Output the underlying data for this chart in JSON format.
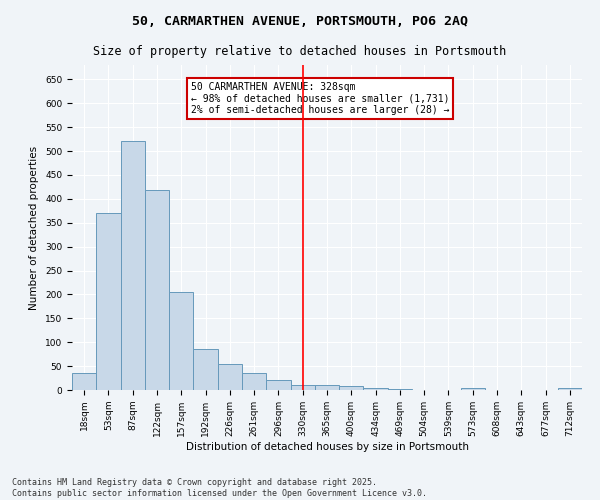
{
  "title": "50, CARMARTHEN AVENUE, PORTSMOUTH, PO6 2AQ",
  "subtitle": "Size of property relative to detached houses in Portsmouth",
  "xlabel": "Distribution of detached houses by size in Portsmouth",
  "ylabel": "Number of detached properties",
  "bar_color": "#c8d8e8",
  "bar_edge_color": "#6699bb",
  "background_color": "#f0f4f8",
  "grid_color": "#ffffff",
  "annotation_text": "50 CARMARTHEN AVENUE: 328sqm\n← 98% of detached houses are smaller (1,731)\n2% of semi-detached houses are larger (28) →",
  "annotation_box_color": "#cc0000",
  "categories": [
    "18sqm",
    "53sqm",
    "87sqm",
    "122sqm",
    "157sqm",
    "192sqm",
    "226sqm",
    "261sqm",
    "296sqm",
    "330sqm",
    "365sqm",
    "400sqm",
    "434sqm",
    "469sqm",
    "504sqm",
    "539sqm",
    "573sqm",
    "608sqm",
    "643sqm",
    "677sqm",
    "712sqm"
  ],
  "values": [
    35,
    370,
    522,
    418,
    205,
    85,
    55,
    35,
    20,
    10,
    10,
    8,
    5,
    2,
    1,
    0,
    4,
    0,
    0,
    0,
    4
  ],
  "ylim": [
    0,
    680
  ],
  "yticks": [
    0,
    50,
    100,
    150,
    200,
    250,
    300,
    350,
    400,
    450,
    500,
    550,
    600,
    650
  ],
  "footnote1": "Contains HM Land Registry data © Crown copyright and database right 2025.",
  "footnote2": "Contains public sector information licensed under the Open Government Licence v3.0.",
  "title_fontsize": 9.5,
  "subtitle_fontsize": 8.5,
  "tick_fontsize": 6.5,
  "axis_label_fontsize": 7.5,
  "annotation_fontsize": 7,
  "footnote_fontsize": 6
}
